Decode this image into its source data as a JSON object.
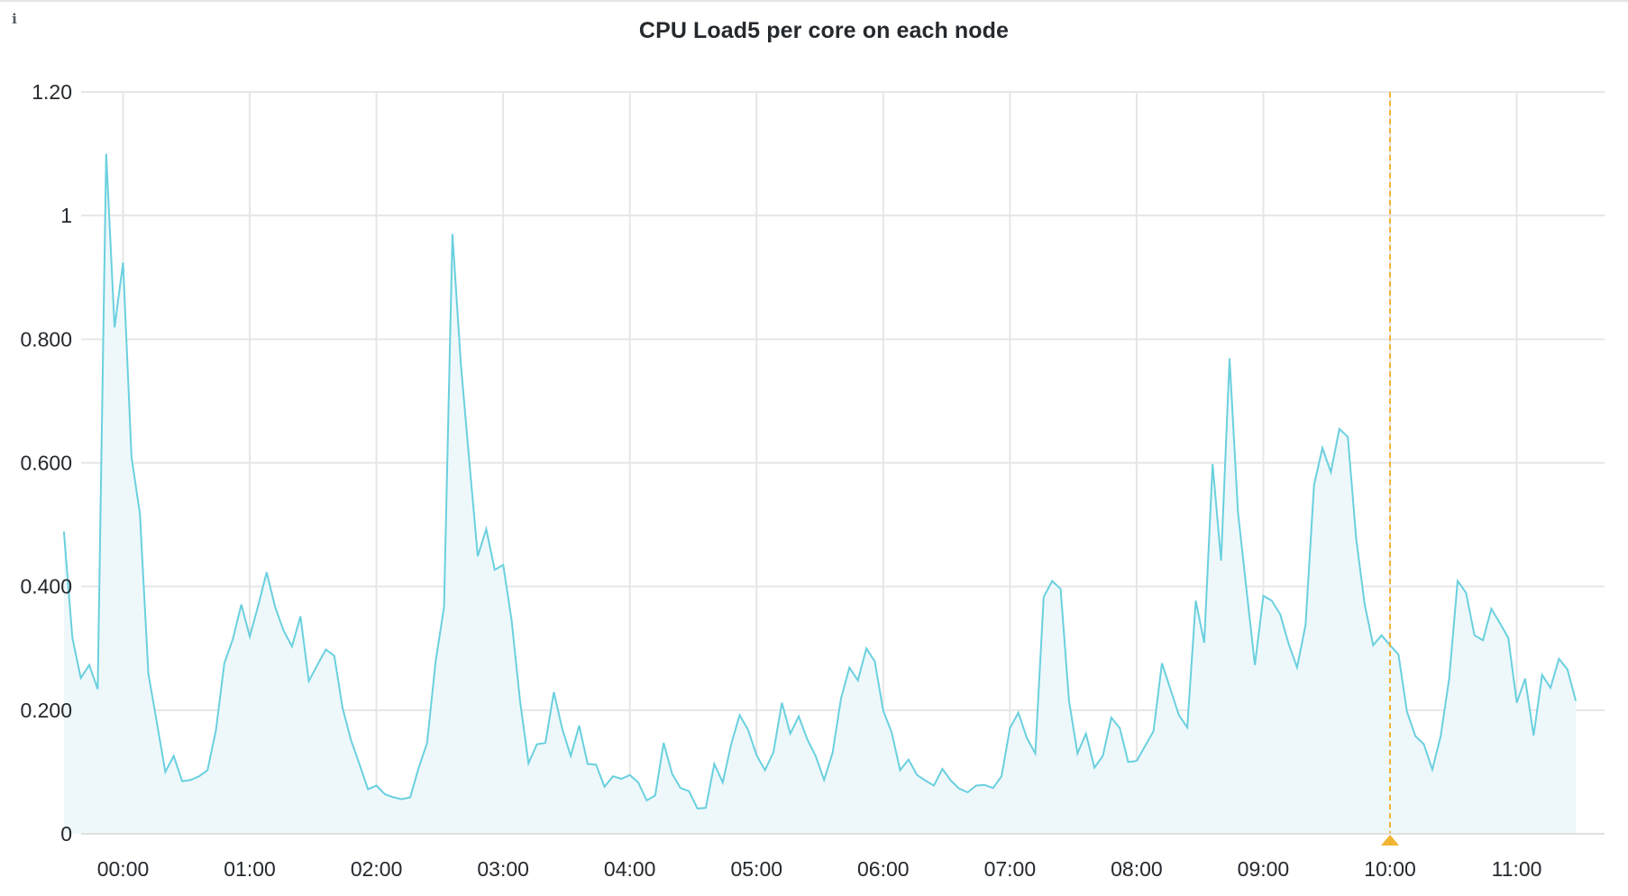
{
  "panel": {
    "title": "CPU Load5 per core on each node",
    "info_icon": "info-icon"
  },
  "colors": {
    "series_line": "#6ad0de",
    "series_fill": "#eef8fb",
    "grid": "#e6e6e6",
    "marker": "#f0b433",
    "text": "#24292e"
  },
  "chart_data": {
    "type": "area",
    "title": "CPU Load5 per core on each node",
    "xlabel": "",
    "ylabel": "",
    "ylim": [
      0,
      1.2
    ],
    "yticks": [
      {
        "value": 0,
        "label": "0"
      },
      {
        "value": 0.2,
        "label": "0.200"
      },
      {
        "value": 0.4,
        "label": "0.400"
      },
      {
        "value": 0.6,
        "label": "0.600"
      },
      {
        "value": 0.8,
        "label": "0.800"
      },
      {
        "value": 1.0,
        "label": "1"
      },
      {
        "value": 1.2,
        "label": "1.20"
      }
    ],
    "xticks": [
      "00:00",
      "01:00",
      "02:00",
      "03:00",
      "04:00",
      "05:00",
      "06:00",
      "07:00",
      "08:00",
      "09:00",
      "10:00",
      "11:00"
    ],
    "x_start_minutes": -28,
    "x_step_minutes": 4,
    "grid": true,
    "legend": "none",
    "annotation": {
      "type": "vertical-marker",
      "at": "10:00",
      "style": "dashed",
      "color": "#f0b433"
    },
    "series": [
      {
        "name": "CPU Load5 per core",
        "values": [
          0.489,
          0.317,
          0.252,
          0.273,
          0.234,
          1.1,
          0.819,
          0.924,
          0.609,
          0.518,
          0.259,
          0.18,
          0.1,
          0.126,
          0.085,
          0.087,
          0.093,
          0.103,
          0.168,
          0.276,
          0.315,
          0.371,
          0.319,
          0.369,
          0.423,
          0.367,
          0.329,
          0.303,
          0.352,
          0.247,
          0.273,
          0.298,
          0.288,
          0.203,
          0.151,
          0.112,
          0.072,
          0.078,
          0.064,
          0.059,
          0.056,
          0.059,
          0.107,
          0.147,
          0.278,
          0.367,
          0.97,
          0.759,
          0.601,
          0.449,
          0.493,
          0.427,
          0.435,
          0.346,
          0.215,
          0.114,
          0.145,
          0.147,
          0.229,
          0.17,
          0.126,
          0.175,
          0.113,
          0.112,
          0.076,
          0.093,
          0.089,
          0.095,
          0.083,
          0.054,
          0.062,
          0.147,
          0.097,
          0.074,
          0.069,
          0.041,
          0.042,
          0.113,
          0.083,
          0.145,
          0.192,
          0.168,
          0.127,
          0.103,
          0.132,
          0.212,
          0.162,
          0.19,
          0.153,
          0.126,
          0.087,
          0.131,
          0.219,
          0.269,
          0.248,
          0.3,
          0.279,
          0.199,
          0.164,
          0.103,
          0.12,
          0.095,
          0.086,
          0.078,
          0.105,
          0.086,
          0.073,
          0.067,
          0.078,
          0.079,
          0.074,
          0.093,
          0.171,
          0.196,
          0.155,
          0.13,
          0.383,
          0.409,
          0.396,
          0.215,
          0.13,
          0.162,
          0.107,
          0.126,
          0.188,
          0.171,
          0.116,
          0.118,
          0.142,
          0.166,
          0.276,
          0.234,
          0.192,
          0.172,
          0.377,
          0.309,
          0.598,
          0.442,
          0.769,
          0.521,
          0.396,
          0.273,
          0.385,
          0.377,
          0.355,
          0.307,
          0.269,
          0.338,
          0.564,
          0.624,
          0.585,
          0.655,
          0.642,
          0.477,
          0.371,
          0.305,
          0.321,
          0.305,
          0.29,
          0.198,
          0.158,
          0.145,
          0.104,
          0.158,
          0.251,
          0.409,
          0.39,
          0.321,
          0.313,
          0.364,
          0.341,
          0.317,
          0.212,
          0.251,
          0.159,
          0.257,
          0.236,
          0.283,
          0.266,
          0.215
        ]
      }
    ]
  }
}
